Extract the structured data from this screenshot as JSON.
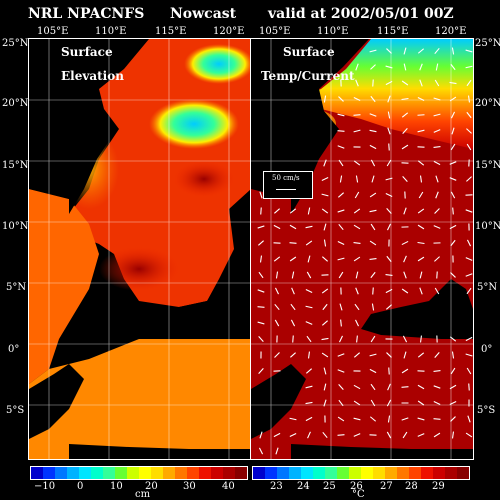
{
  "header": {
    "model": "NRL NPACNFS",
    "product": "Nowcast",
    "valid": "valid at 2002/05/01 00Z"
  },
  "lon_ticks_left": [
    "105°E",
    "110°E",
    "115°E",
    "120°E"
  ],
  "lon_ticks_right": [
    "105°E",
    "110°E",
    "115°E",
    "120°E"
  ],
  "lat_ticks_left": [
    "25°N",
    "20°N",
    "15°N",
    "10°N",
    "5°N",
    "0°",
    "5°S"
  ],
  "lat_ticks_right": [
    "25°N",
    "20°N",
    "15°N",
    "10°N",
    "5°N",
    "0°",
    "5°S"
  ],
  "panels": {
    "left": {
      "label_line1": "Surface",
      "label_line2": "Elevation"
    },
    "right": {
      "label_line1": "Surface",
      "label_line2": "Temp/Current",
      "vector_key": "50 cm/s"
    }
  },
  "colorbar_left": {
    "ticks": [
      "−10",
      "0",
      "10",
      "20",
      "30",
      "40"
    ],
    "unit": "cm",
    "colors": [
      "#0000cc",
      "#0033ff",
      "#0077ff",
      "#00b3ff",
      "#00e5ff",
      "#00ffcc",
      "#33ff99",
      "#66ff33",
      "#ccff00",
      "#ffff00",
      "#ffdd00",
      "#ffaa00",
      "#ff7700",
      "#ff4400",
      "#ee1100",
      "#cc0000",
      "#aa0000",
      "#880000"
    ]
  },
  "colorbar_right": {
    "ticks": [
      "23",
      "24",
      "25",
      "26",
      "27",
      "28",
      "29"
    ],
    "unit": "°C",
    "colors": [
      "#0000cc",
      "#0033ff",
      "#0077ff",
      "#00b3ff",
      "#00e5ff",
      "#00ffcc",
      "#33ff99",
      "#66ff33",
      "#ccff00",
      "#ffff00",
      "#ffdd00",
      "#ffaa00",
      "#ff7700",
      "#ff4400",
      "#ee1100",
      "#cc0000",
      "#aa0000",
      "#880000"
    ]
  }
}
